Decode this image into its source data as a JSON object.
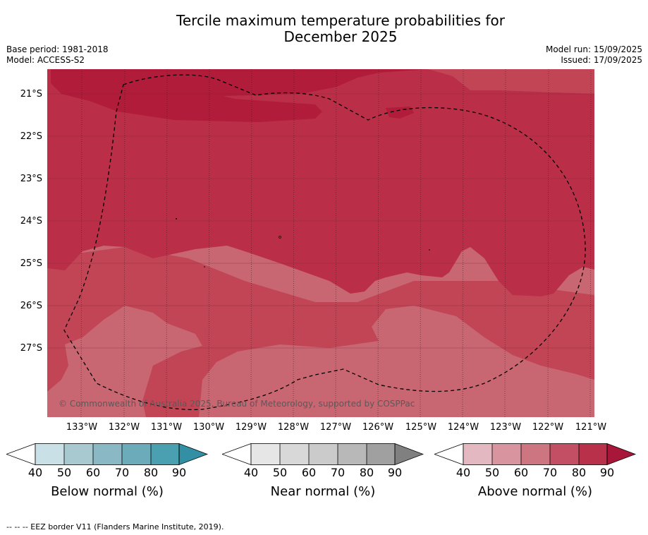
{
  "header": {
    "title_line1": "Tercile maximum temperature probabilities for",
    "title_line2": "December 2025",
    "base_period": "Base period: 1981-2018",
    "model": "Model: ACCESS-S2",
    "model_run": "Model run: 15/09/2025",
    "issued": "Issued: 17/09/2025"
  },
  "map": {
    "lat_labels": [
      "21°S",
      "22°S",
      "23°S",
      "24°S",
      "25°S",
      "26°S",
      "27°S"
    ],
    "lon_labels": [
      "133°W",
      "132°W",
      "131°W",
      "130°W",
      "129°W",
      "128°W",
      "127°W",
      "126°W",
      "125°W",
      "124°W",
      "123°W",
      "122°W",
      "121°W"
    ],
    "copyright": "© Commonwealth of Australia 2025, Bureau of Meteorology, supported by COSPPac",
    "colors": {
      "above_80_90": "#ba2e48",
      "above_90_plus": "#b01c3a",
      "above_70_80": "#c24555",
      "above_60_70": "#c86672"
    }
  },
  "colorbars": [
    {
      "label": "Below normal (%)",
      "ticks": [
        "40",
        "50",
        "60",
        "70",
        "80",
        "90"
      ],
      "colors": [
        "#ffffff",
        "#c8e0e6",
        "#a9c9d0",
        "#8ab8c4",
        "#6cabba",
        "#4a9fb0",
        "#3390a4"
      ]
    },
    {
      "label": "Near normal (%)",
      "ticks": [
        "40",
        "50",
        "60",
        "70",
        "80",
        "90"
      ],
      "colors": [
        "#ffffff",
        "#e6e6e6",
        "#d8d8d8",
        "#cbcbcb",
        "#b8b8b8",
        "#a0a0a0",
        "#808080"
      ]
    },
    {
      "label": "Above normal (%)",
      "ticks": [
        "40",
        "50",
        "60",
        "70",
        "80",
        "90"
      ],
      "colors": [
        "#ffffff",
        "#e4b8c0",
        "#d9959f",
        "#cd7580",
        "#c24f63",
        "#b8304a",
        "#a8173a"
      ]
    }
  ],
  "footnote": "--  --  -- EEZ border V11 (Flanders Marine Institute, 2019)."
}
